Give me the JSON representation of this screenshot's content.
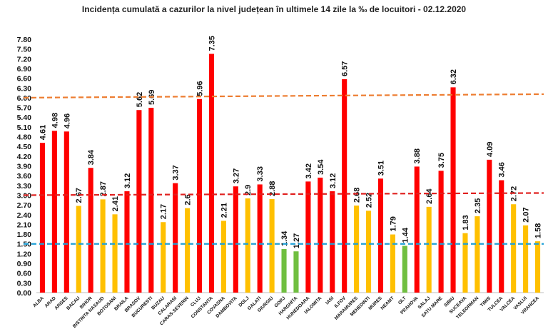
{
  "chart_data": {
    "type": "bar",
    "title": "Incidența cumulată a cazurilor la nivel județean în ultimele 14 zile la ‰ de locuitori - 02.12.2020",
    "xlabel": "",
    "ylabel": "",
    "ylim": [
      0,
      7.8
    ],
    "yticks": [
      "0.00",
      "0.30",
      "0.60",
      "0.90",
      "1.20",
      "1.50",
      "1.80",
      "2.10",
      "2.40",
      "2.70",
      "3.00",
      "3.30",
      "3.60",
      "3.90",
      "4.20",
      "4.50",
      "4.80",
      "5.10",
      "5.40",
      "5.70",
      "6.00",
      "6.30",
      "6.60",
      "6.90",
      "7.20",
      "7.50",
      "7.80"
    ],
    "grid": false,
    "legend": "none",
    "categories": [
      "ALBA",
      "ARAD",
      "ARGES",
      "BACAU",
      "BIHOR",
      "BISTRITA NASAUD",
      "BOTOSANI",
      "BRAILA",
      "BRASOV",
      "BUCURESTI",
      "BUZAU",
      "CALARASI",
      "CARAS-SEVERIN",
      "CLUJ",
      "CONSTANTA",
      "COVASNA",
      "DAMBOVITA",
      "DOLJ",
      "GALATI",
      "GIURGIU",
      "GORJ",
      "HARGHITA",
      "HUNEDOARA",
      "IALOMITA",
      "IASI",
      "ILFOV",
      "MARAMURES",
      "MEHEDINTI",
      "MURES",
      "NEAMT",
      "OLT",
      "PRAHOVA",
      "SALAJ",
      "SATU MARE",
      "SIBIU",
      "SUCEAVA",
      "TELEORMAN",
      "TIMIS",
      "TULCEA",
      "VALCEA",
      "VASLUI",
      "VRANCEA"
    ],
    "values": [
      4.61,
      4.98,
      4.96,
      2.67,
      3.84,
      2.87,
      2.41,
      3.12,
      5.62,
      5.69,
      2.17,
      3.37,
      2.6,
      5.96,
      7.35,
      2.21,
      3.27,
      2.9,
      3.33,
      2.88,
      1.34,
      1.27,
      3.42,
      3.54,
      3.12,
      6.57,
      2.68,
      2.52,
      3.51,
      1.79,
      1.44,
      3.88,
      2.64,
      3.75,
      6.32,
      1.83,
      2.35,
      4.09,
      3.46,
      2.72,
      2.07,
      1.58
    ],
    "value_labels": [
      "4.61",
      "4.98",
      "4.96",
      "2.67",
      "3.84",
      "2.87",
      "2.41",
      "3.12",
      "5.62",
      "5.69",
      "2.17",
      "3.37",
      "2.6",
      "5.96",
      "7.35",
      "2.21",
      "3.27",
      "2.9",
      "3.33",
      "2.88",
      "1.34",
      "1.27",
      "3.42",
      "3.54",
      "3.12",
      "6.57",
      "2.68",
      "2.52",
      "3.51",
      "1.79",
      "1.44",
      "3.88",
      "2.64",
      "3.75",
      "6.32",
      "1.83",
      "2.35",
      "4.09",
      "3.46",
      "2.72",
      "2.07",
      "1.58"
    ],
    "bar_colors": {
      "red": "#ff0000",
      "yellow": "#ffc000",
      "green": "#70bf40"
    },
    "thresholds": [
      {
        "value": 6.0,
        "color": "#ed7d31",
        "style": "dashed"
      },
      {
        "value": 3.0,
        "color": "#e0201f",
        "style": "dashed"
      },
      {
        "value": 1.5,
        "color": "#1ea0d8",
        "style": "dashed"
      }
    ]
  }
}
